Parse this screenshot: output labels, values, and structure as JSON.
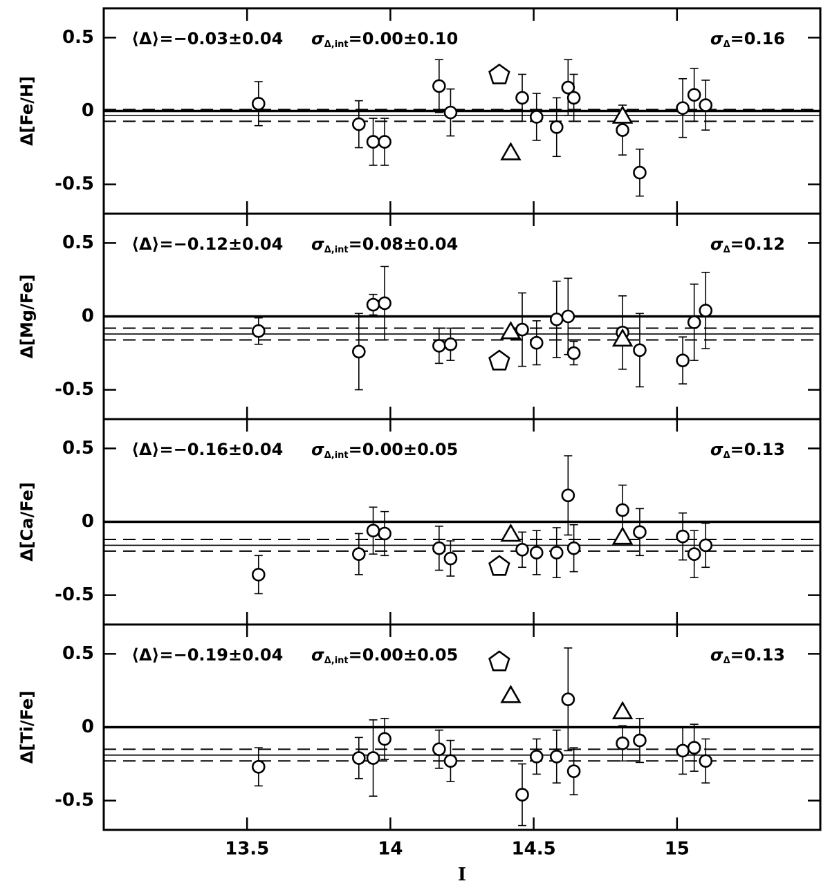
{
  "chart_data": [
    {
      "type": "scatter",
      "ylabel": "Δ[Fe/H]",
      "xlim": [
        13.0,
        15.5
      ],
      "xticks": [
        13.5,
        14,
        14.5,
        15
      ],
      "ylim": [
        -0.7,
        0.7
      ],
      "yticks": [
        -0.5,
        0,
        0.5
      ],
      "annotations": [
        {
          "text": "⟨Δ⟩=−0.03±0.04"
        },
        {
          "symbol": "σ",
          "subscript": "Δ,int",
          "text": "=0.00±0.10"
        },
        {
          "symbol": "σ",
          "subscript": "Δ",
          "text": "=0.16"
        }
      ],
      "ref_lines": [
        {
          "value": 0,
          "style": "thick"
        },
        {
          "value": -0.03,
          "style": "thin"
        },
        {
          "value": 0.01,
          "style": "dashed"
        },
        {
          "value": -0.07,
          "style": "dashed"
        }
      ],
      "series": [
        {
          "marker": "circle",
          "color": "#000000",
          "x": [
            13.54,
            13.89,
            13.94,
            13.98,
            14.17,
            14.21,
            14.46,
            14.51,
            14.58,
            14.62,
            14.64,
            14.81,
            14.87,
            15.02,
            15.06,
            15.1
          ],
          "values": [
            0.05,
            -0.09,
            -0.21,
            -0.21,
            0.17,
            -0.01,
            0.09,
            -0.04,
            -0.11,
            0.16,
            0.09,
            -0.13,
            -0.42,
            0.02,
            0.11,
            0.04
          ],
          "errors": [
            0.15,
            0.16,
            0.16,
            0.16,
            0.18,
            0.16,
            0.16,
            0.16,
            0.2,
            0.19,
            0.16,
            0.17,
            0.16,
            0.2,
            0.18,
            0.17
          ]
        },
        {
          "marker": "triangle",
          "color": "#000000",
          "x": [
            14.42,
            14.81
          ],
          "values": [
            -0.28,
            -0.03
          ]
        },
        {
          "marker": "pentagon",
          "color": "#000000",
          "x": [
            14.38
          ],
          "values": [
            0.25
          ]
        }
      ]
    },
    {
      "type": "scatter",
      "ylabel": "Δ[Mg/Fe]",
      "xlim": [
        13.0,
        15.5
      ],
      "xticks": [
        13.5,
        14,
        14.5,
        15
      ],
      "ylim": [
        -0.7,
        0.7
      ],
      "yticks": [
        -0.5,
        0,
        0.5
      ],
      "annotations": [
        {
          "text": "⟨Δ⟩=−0.12±0.04"
        },
        {
          "symbol": "σ",
          "subscript": "Δ,int",
          "text": "=0.08±0.04"
        },
        {
          "symbol": "σ",
          "subscript": "Δ",
          "text": "=0.12"
        }
      ],
      "ref_lines": [
        {
          "value": 0,
          "style": "thick"
        },
        {
          "value": -0.12,
          "style": "thin"
        },
        {
          "value": -0.08,
          "style": "dashed"
        },
        {
          "value": -0.16,
          "style": "dashed"
        }
      ],
      "series": [
        {
          "marker": "circle",
          "color": "#000000",
          "x": [
            13.54,
            13.89,
            13.94,
            13.98,
            14.17,
            14.21,
            14.46,
            14.51,
            14.58,
            14.62,
            14.64,
            14.81,
            14.87,
            15.02,
            15.06,
            15.1
          ],
          "values": [
            -0.1,
            -0.24,
            0.08,
            0.09,
            -0.2,
            -0.19,
            -0.09,
            -0.18,
            -0.02,
            0.0,
            -0.25,
            -0.11,
            -0.23,
            -0.3,
            -0.04,
            0.04
          ],
          "errors": [
            0.09,
            0.26,
            0.07,
            0.25,
            0.12,
            0.11,
            0.25,
            0.15,
            0.26,
            0.26,
            0.08,
            0.25,
            0.25,
            0.16,
            0.26,
            0.26
          ]
        },
        {
          "marker": "triangle",
          "color": "#000000",
          "x": [
            14.42,
            14.81
          ],
          "values": [
            -0.1,
            -0.15
          ]
        },
        {
          "marker": "pentagon",
          "color": "#000000",
          "x": [
            14.38
          ],
          "values": [
            -0.3
          ]
        }
      ]
    },
    {
      "type": "scatter",
      "ylabel": "Δ[Ca/Fe]",
      "xlim": [
        13.0,
        15.5
      ],
      "xticks": [
        13.5,
        14,
        14.5,
        15
      ],
      "ylim": [
        -0.7,
        0.7
      ],
      "yticks": [
        -0.5,
        0,
        0.5
      ],
      "annotations": [
        {
          "text": "⟨Δ⟩=−0.16±0.04"
        },
        {
          "symbol": "σ",
          "subscript": "Δ,int",
          "text": "=0.00±0.05"
        },
        {
          "symbol": "σ",
          "subscript": "Δ",
          "text": "=0.13"
        }
      ],
      "ref_lines": [
        {
          "value": 0,
          "style": "thick"
        },
        {
          "value": -0.16,
          "style": "thin"
        },
        {
          "value": -0.12,
          "style": "dashed"
        },
        {
          "value": -0.2,
          "style": "dashed"
        }
      ],
      "series": [
        {
          "marker": "circle",
          "color": "#000000",
          "x": [
            13.54,
            13.89,
            13.94,
            13.98,
            14.17,
            14.21,
            14.46,
            14.51,
            14.58,
            14.62,
            14.64,
            14.81,
            14.87,
            15.02,
            15.06,
            15.1
          ],
          "values": [
            -0.36,
            -0.22,
            -0.06,
            -0.08,
            -0.18,
            -0.25,
            -0.19,
            -0.21,
            -0.21,
            0.18,
            -0.18,
            0.08,
            -0.07,
            -0.1,
            -0.22,
            -0.16
          ],
          "errors": [
            0.13,
            0.14,
            0.16,
            0.15,
            0.15,
            0.12,
            0.12,
            0.15,
            0.17,
            0.27,
            0.16,
            0.17,
            0.16,
            0.16,
            0.16,
            0.15
          ]
        },
        {
          "marker": "triangle",
          "color": "#000000",
          "x": [
            14.42,
            14.81
          ],
          "values": [
            -0.08,
            -0.1
          ]
        },
        {
          "marker": "pentagon",
          "color": "#000000",
          "x": [
            14.38
          ],
          "values": [
            -0.3
          ]
        }
      ]
    },
    {
      "type": "scatter",
      "ylabel": "Δ[Ti/Fe]",
      "xlabel": "I",
      "xlim": [
        13.0,
        15.5
      ],
      "xticks": [
        13.5,
        14,
        14.5,
        15
      ],
      "ylim": [
        -0.7,
        0.7
      ],
      "yticks": [
        -0.5,
        0,
        0.5
      ],
      "annotations": [
        {
          "text": "⟨Δ⟩=−0.19±0.04"
        },
        {
          "symbol": "σ",
          "subscript": "Δ,int",
          "text": "=0.00±0.05"
        },
        {
          "symbol": "σ",
          "subscript": "Δ",
          "text": "=0.13"
        }
      ],
      "ref_lines": [
        {
          "value": 0,
          "style": "thick"
        },
        {
          "value": -0.19,
          "style": "thin"
        },
        {
          "value": -0.15,
          "style": "dashed"
        },
        {
          "value": -0.23,
          "style": "dashed"
        }
      ],
      "series": [
        {
          "marker": "circle",
          "color": "#000000",
          "x": [
            13.54,
            13.89,
            13.94,
            13.98,
            14.17,
            14.21,
            14.46,
            14.51,
            14.58,
            14.62,
            14.64,
            14.81,
            14.87,
            15.02,
            15.06,
            15.1
          ],
          "values": [
            -0.27,
            -0.21,
            -0.21,
            -0.08,
            -0.15,
            -0.23,
            -0.46,
            -0.2,
            -0.2,
            0.19,
            -0.3,
            -0.11,
            -0.09,
            -0.16,
            -0.14,
            -0.23
          ],
          "errors": [
            0.13,
            0.14,
            0.26,
            0.14,
            0.13,
            0.14,
            0.21,
            0.12,
            0.18,
            0.35,
            0.16,
            0.12,
            0.15,
            0.16,
            0.16,
            0.15
          ]
        },
        {
          "marker": "triangle",
          "color": "#000000",
          "x": [
            14.42,
            14.81
          ],
          "values": [
            0.22,
            0.11
          ]
        },
        {
          "marker": "pentagon",
          "color": "#000000",
          "x": [
            14.38
          ],
          "values": [
            0.45
          ]
        }
      ]
    }
  ]
}
